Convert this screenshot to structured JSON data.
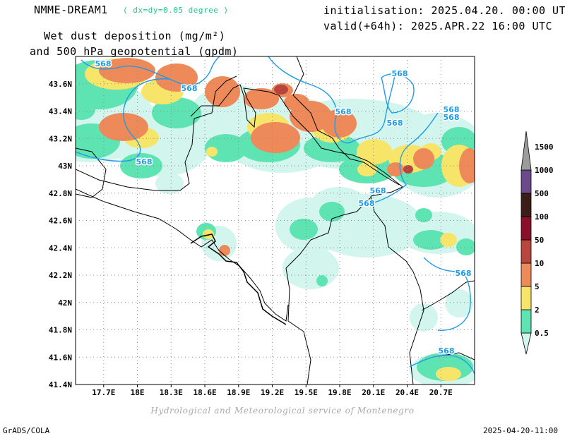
{
  "header": {
    "model": "NMME-DREAM1",
    "resolution": "( dx=dy=0.05 degree )",
    "field_line1": "Wet dust deposition (mg/m²)",
    "field_line2": "and 500 hPa geopotential (gpdm)",
    "init": "initialisation: 2025.04.20. 00:00 UTC",
    "valid": "valid(+64h): 2025.APR.22 16:00 UTC"
  },
  "map": {
    "lon_range": [
      17.45,
      21.0
    ],
    "lat_range": [
      41.4,
      43.8
    ],
    "x_ticks": [
      "17.7E",
      "18E",
      "18.3E",
      "18.6E",
      "18.9E",
      "19.2E",
      "19.5E",
      "19.8E",
      "20.1E",
      "20.4E",
      "20.7E"
    ],
    "y_ticks": [
      "43.6N",
      "43.4N",
      "43.2N",
      "43N",
      "42.8N",
      "42.6N",
      "42.4N",
      "42.2N",
      "42N",
      "41.8N",
      "41.6N",
      "41.4N"
    ],
    "grid": true,
    "contour_label": "568",
    "contour_color": "#1e9be6"
  },
  "colorbar": {
    "labels": [
      "0.5",
      "2",
      "5",
      "10",
      "50",
      "100",
      "500",
      "1000",
      "1500"
    ],
    "colors": [
      "#d2f5ee",
      "#5ee3b2",
      "#f7e56a",
      "#ee8a5a",
      "#b8463c",
      "#8a0f2a",
      "#3b1f16",
      "#6b4a8c",
      "#9c9c9c"
    ]
  },
  "credit": "Hydrological and Meteorological service of Montenegro",
  "footer": {
    "left": "GrADS/COLA",
    "right": "2025-04-20-11:00"
  }
}
